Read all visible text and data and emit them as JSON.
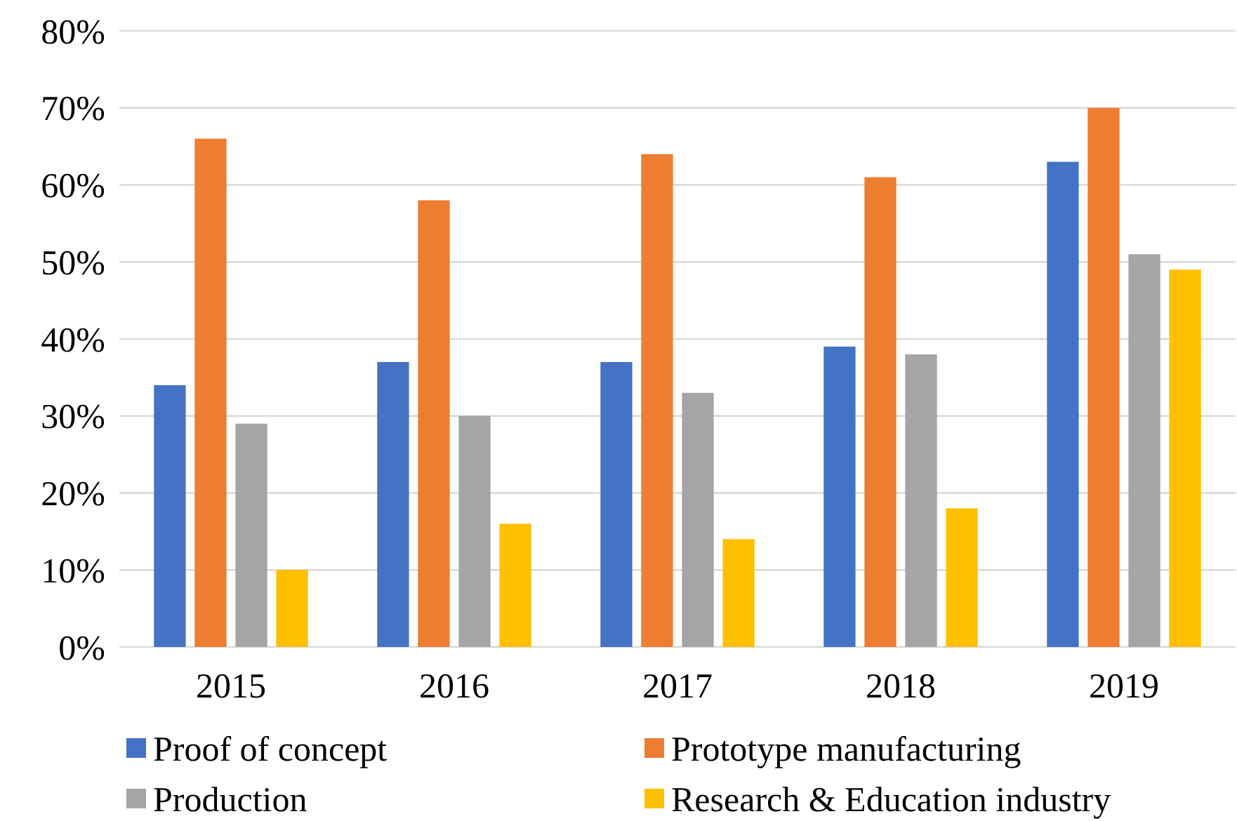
{
  "chart_data": {
    "type": "bar",
    "categories": [
      "2015",
      "2016",
      "2017",
      "2018",
      "2019"
    ],
    "series": [
      {
        "name": "Proof of concept",
        "color": "#4472c4",
        "values": [
          34,
          37,
          37,
          39,
          63
        ]
      },
      {
        "name": "Prototype manufacturing",
        "color": "#ed7d31",
        "values": [
          66,
          58,
          64,
          61,
          70
        ]
      },
      {
        "name": "Production",
        "color": "#a5a5a5",
        "values": [
          29,
          30,
          33,
          38,
          51
        ]
      },
      {
        "name": "Research & Education industry",
        "color": "#ffc000",
        "values": [
          10,
          16,
          14,
          18,
          49
        ]
      }
    ],
    "ylim": [
      0,
      80
    ],
    "yticks": [
      {
        "value": 0,
        "label": "0%"
      },
      {
        "value": 10,
        "label": "10%"
      },
      {
        "value": 20,
        "label": "20%"
      },
      {
        "value": 30,
        "label": "30%"
      },
      {
        "value": 40,
        "label": "40%"
      },
      {
        "value": 50,
        "label": "50%"
      },
      {
        "value": 60,
        "label": "60%"
      },
      {
        "value": 70,
        "label": "70%"
      },
      {
        "value": 80,
        "label": "80%"
      }
    ],
    "grid": "y",
    "legend": "bottom"
  }
}
